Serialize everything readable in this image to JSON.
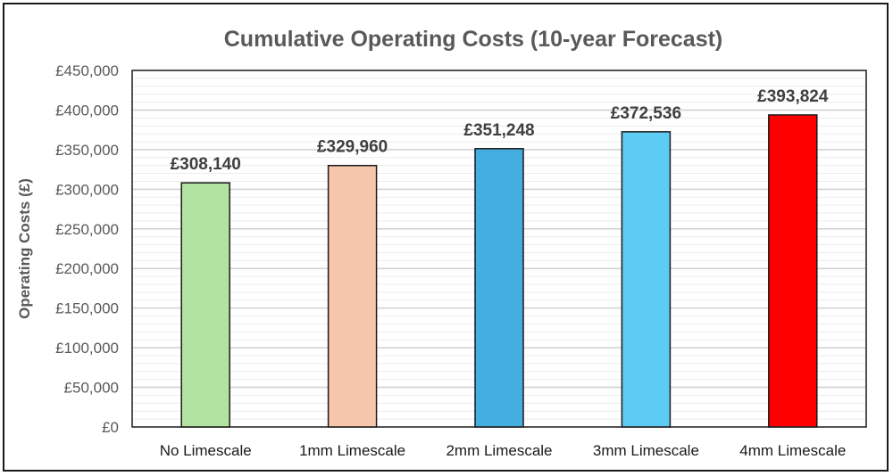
{
  "chart_data": {
    "type": "bar",
    "title": "Cumulative Operating Costs (10-year Forecast)",
    "xlabel": "",
    "ylabel": "Operating Costs (£)",
    "categories": [
      "No Limescale",
      "1mm Limescale",
      "2mm Limescale",
      "3mm Limescale",
      "4mm Limescale"
    ],
    "values": [
      308140,
      329960,
      351248,
      372536,
      393824
    ],
    "data_labels": [
      "£308,140",
      "£329,960",
      "£351,248",
      "£372,536",
      "£393,824"
    ],
    "colors": [
      "#b3e3a0",
      "#f5c6ac",
      "#45aee0",
      "#5ecbf5",
      "#ff0000"
    ],
    "ylim": [
      0,
      450000
    ],
    "yticks": [
      0,
      50000,
      100000,
      150000,
      200000,
      250000,
      300000,
      350000,
      400000,
      450000
    ],
    "ytick_labels": [
      "£0",
      "£50,000",
      "£100,000",
      "£150,000",
      "£200,000",
      "£250,000",
      "£300,000",
      "£350,000",
      "£400,000",
      "£450,000"
    ],
    "minor_step": 10000,
    "grid": true,
    "legend": "none"
  }
}
